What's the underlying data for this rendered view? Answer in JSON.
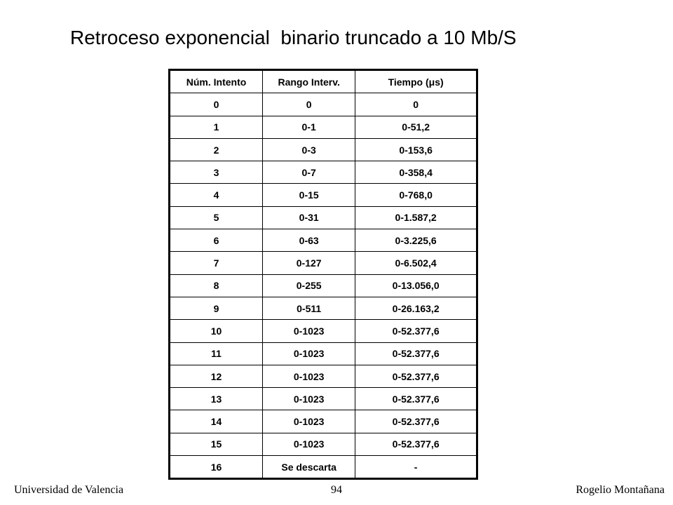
{
  "header": {
    "title": "Retroceso exponencial  binario truncado a 10 Mb/S"
  },
  "table": {
    "columns": [
      "Núm. Intento",
      "Rango Interv.",
      "Tiempo (μs)"
    ],
    "rows": [
      [
        "0",
        "0",
        "0"
      ],
      [
        "1",
        "0-1",
        "0-51,2"
      ],
      [
        "2",
        "0-3",
        "0-153,6"
      ],
      [
        "3",
        "0-7",
        "0-358,4"
      ],
      [
        "4",
        "0-15",
        "0-768,0"
      ],
      [
        "5",
        "0-31",
        "0-1.587,2"
      ],
      [
        "6",
        "0-63",
        "0-3.225,6"
      ],
      [
        "7",
        "0-127",
        "0-6.502,4"
      ],
      [
        "8",
        "0-255",
        "0-13.056,0"
      ],
      [
        "9",
        "0-511",
        "0-26.163,2"
      ],
      [
        "10",
        "0-1023",
        "0-52.377,6"
      ],
      [
        "11",
        "0-1023",
        "0-52.377,6"
      ],
      [
        "12",
        "0-1023",
        "0-52.377,6"
      ],
      [
        "13",
        "0-1023",
        "0-52.377,6"
      ],
      [
        "14",
        "0-1023",
        "0-52.377,6"
      ],
      [
        "15",
        "0-1023",
        "0-52.377,6"
      ],
      [
        "16",
        "Se descarta",
        "-"
      ]
    ]
  },
  "footer": {
    "left": "Universidad de Valencia",
    "center": "94",
    "right": "Rogelio Montañana"
  }
}
